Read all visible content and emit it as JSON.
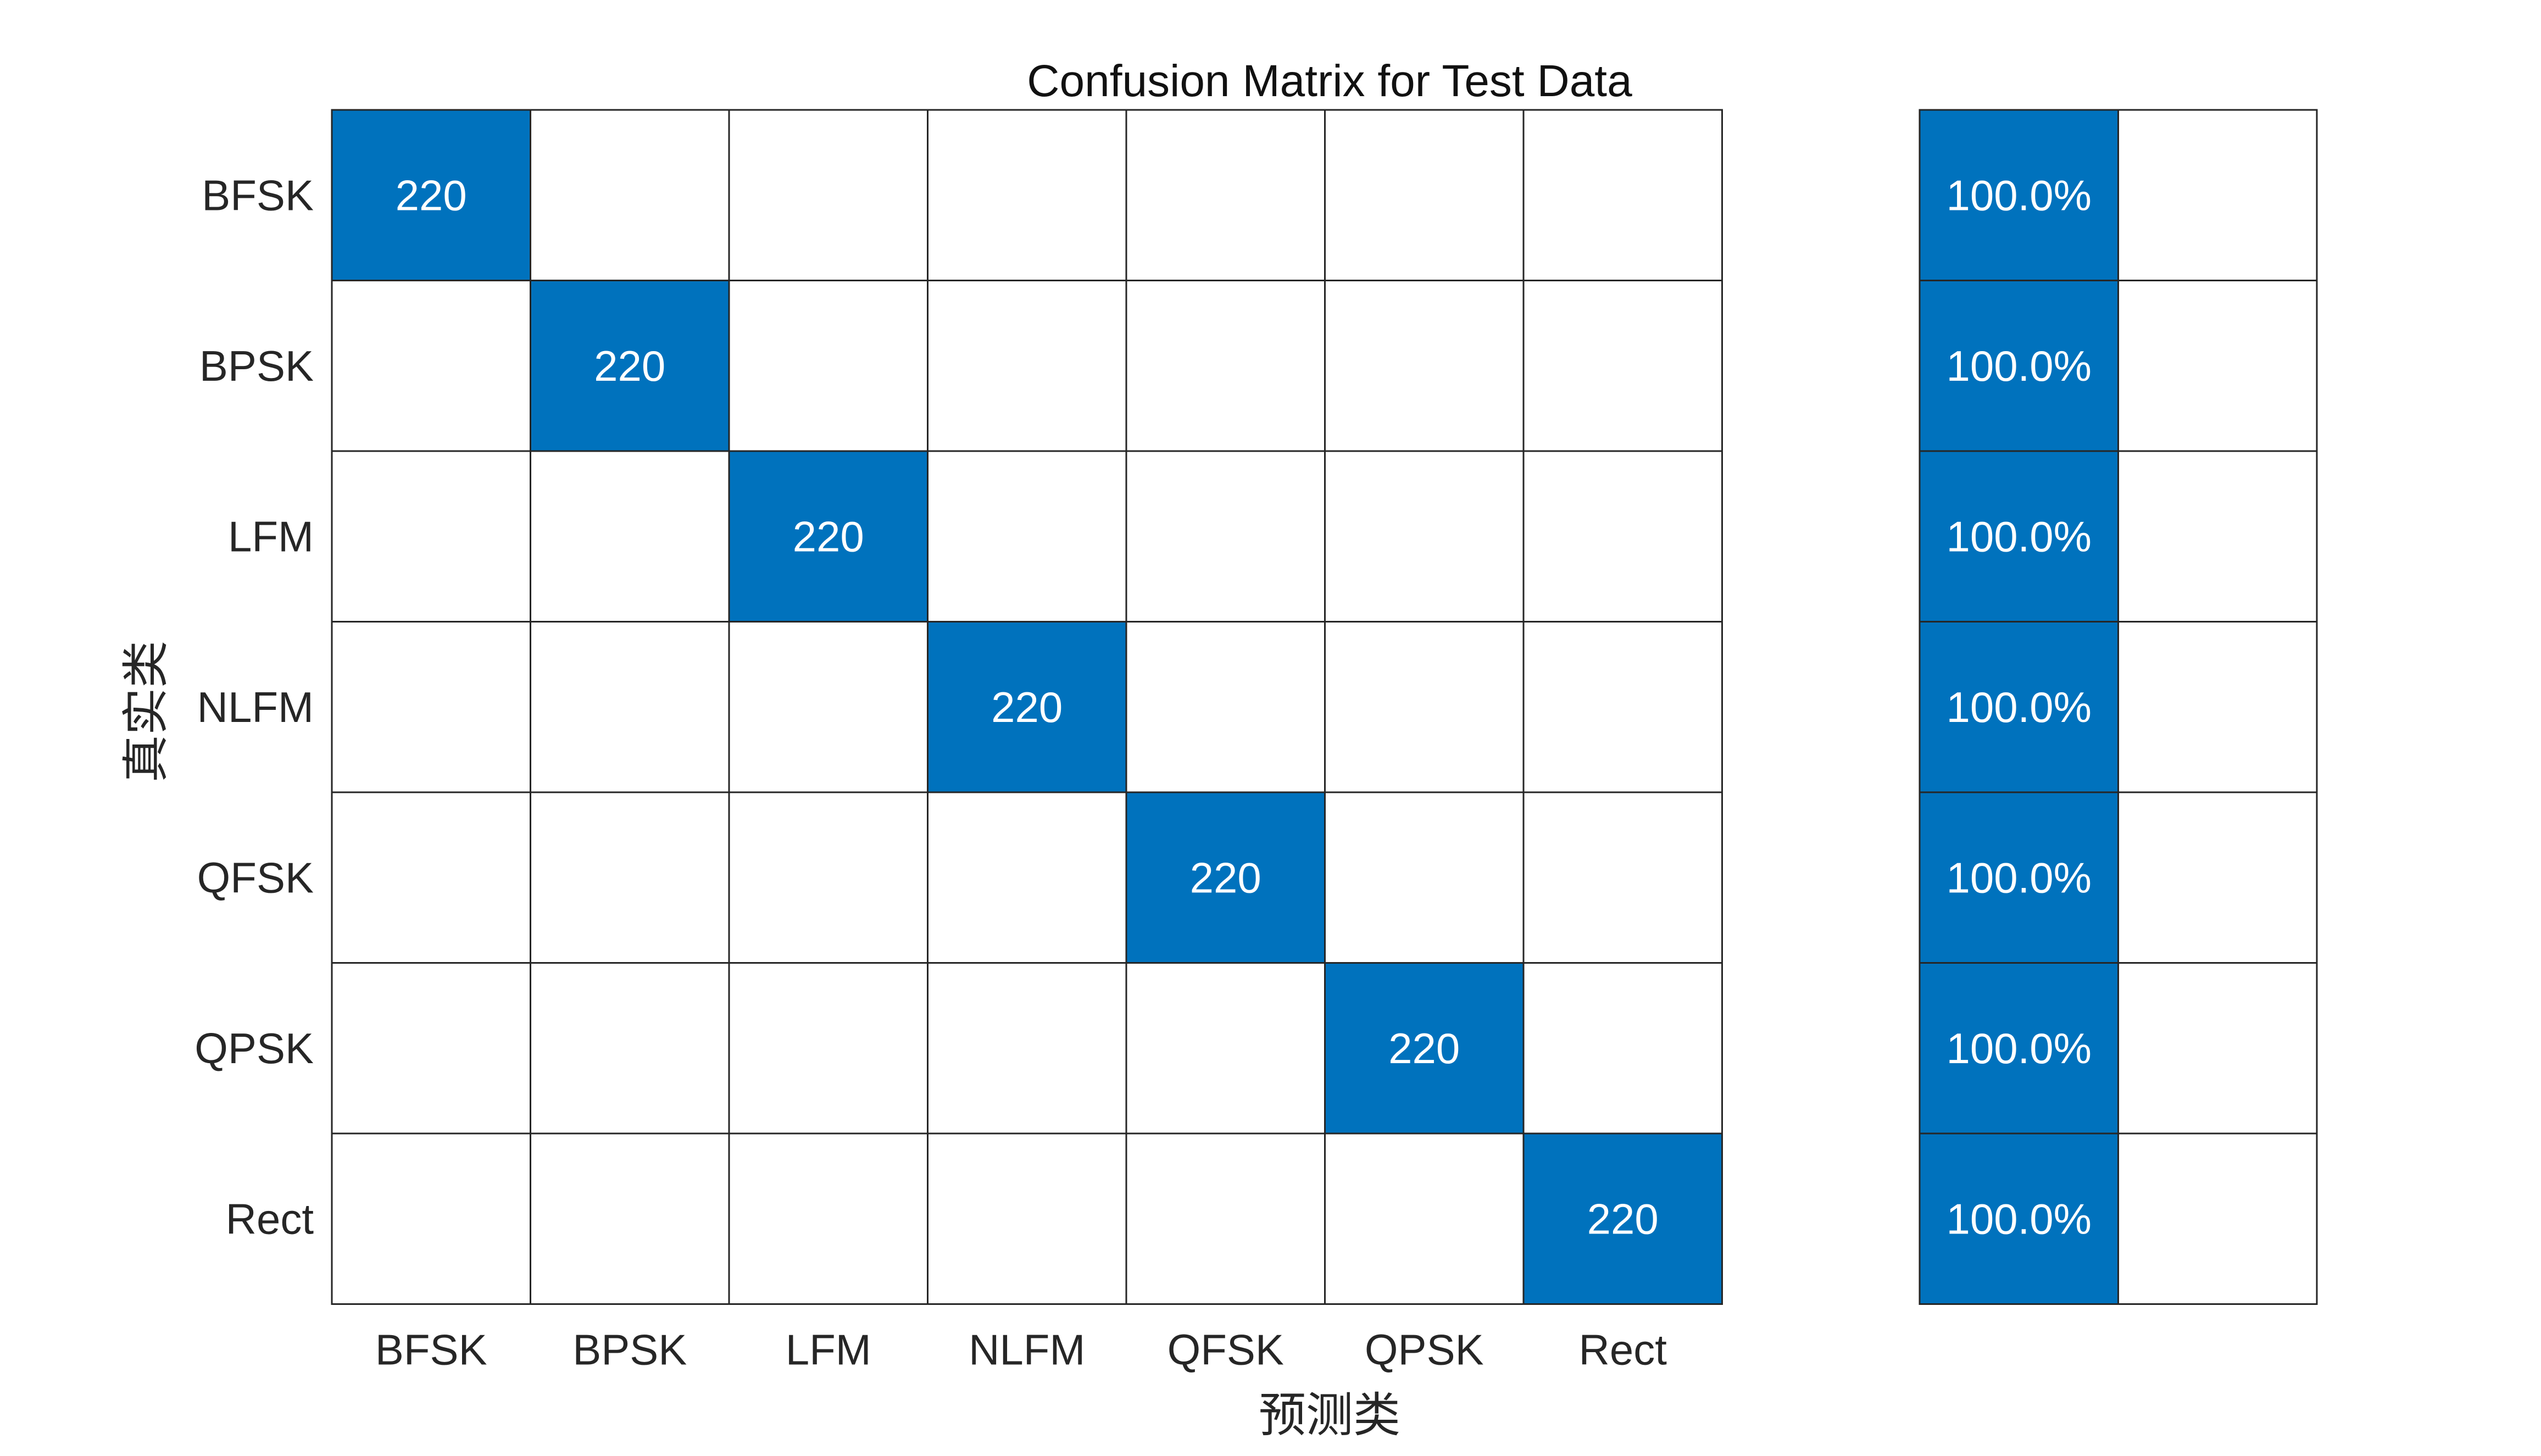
{
  "chart_data": {
    "type": "heatmap",
    "title": "Confusion Matrix for Test Data",
    "xlabel": "预测类",
    "ylabel": "真实类",
    "row_labels": [
      "BFSK",
      "BPSK",
      "LFM",
      "NLFM",
      "QFSK",
      "QPSK",
      "Rect"
    ],
    "col_labels": [
      "BFSK",
      "BPSK",
      "LFM",
      "NLFM",
      "QFSK",
      "QPSK",
      "Rect"
    ],
    "matrix": [
      [
        220,
        0,
        0,
        0,
        0,
        0,
        0
      ],
      [
        0,
        220,
        0,
        0,
        0,
        0,
        0
      ],
      [
        0,
        0,
        220,
        0,
        0,
        0,
        0
      ],
      [
        0,
        0,
        0,
        220,
        0,
        0,
        0
      ],
      [
        0,
        0,
        0,
        0,
        220,
        0,
        0
      ],
      [
        0,
        0,
        0,
        0,
        0,
        220,
        0
      ],
      [
        0,
        0,
        0,
        0,
        0,
        0,
        220
      ]
    ],
    "row_summary": {
      "correct": [
        "100.0%",
        "100.0%",
        "100.0%",
        "100.0%",
        "100.0%",
        "100.0%",
        "100.0%"
      ],
      "incorrect": [
        0,
        0,
        0,
        0,
        0,
        0,
        0
      ]
    },
    "colors": {
      "filled": "#0072BD",
      "empty": "#ffffff",
      "grid": "#262626",
      "cell_text": "#ffffff"
    },
    "legend": "none",
    "grid": true
  }
}
